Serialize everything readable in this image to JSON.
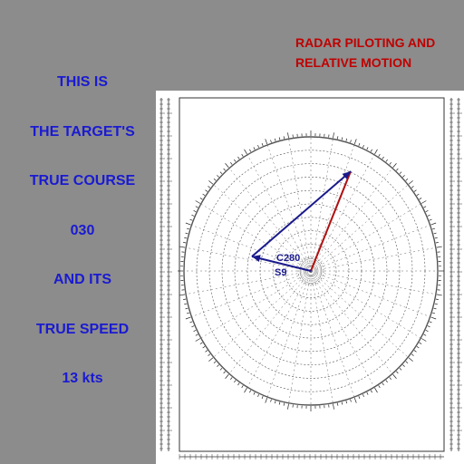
{
  "title": [
    "RADAR PILOTING AND",
    "RELATIVE MOTION"
  ],
  "caption_lines": [
    "THIS IS",
    "THE TARGET'S",
    "TRUE COURSE",
    "030",
    "AND ITS",
    "TRUE SPEED",
    "13 kts"
  ],
  "plot": {
    "vector_label_course": "C280",
    "vector_label_speed": "S9",
    "relative_vector_color": "#1a1a8c",
    "true_vector_color": "#b01010",
    "true_course_deg": 30,
    "relative_course_deg": 280
  }
}
